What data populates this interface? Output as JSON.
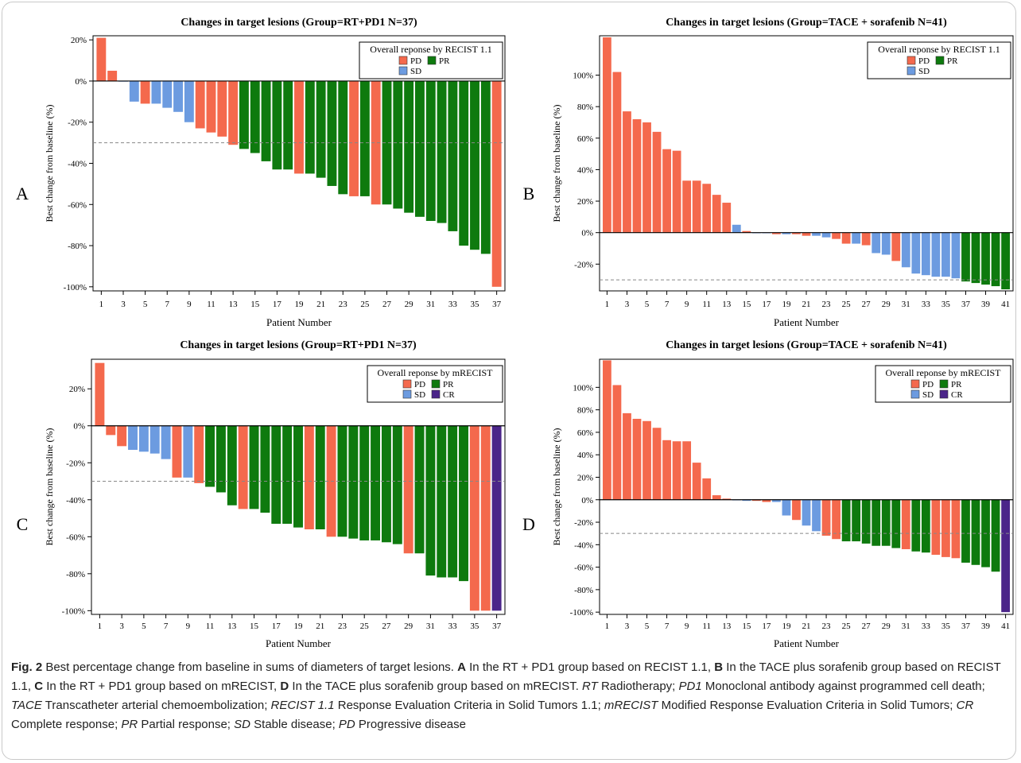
{
  "colors": {
    "PD": "#f4694d",
    "PR": "#0e7a0e",
    "SD": "#6c9be0",
    "CR": "#4b2589",
    "axis": "#000000",
    "refline": "#888888"
  },
  "chart_data": [
    {
      "type": "bar",
      "panel_letter": "A",
      "title": "Changes in target lesions (Group=RT+PD1 N=37)",
      "xlabel": "Patient Number",
      "ylabel": "Best change from baseline (%)",
      "ylim": [
        -102,
        22
      ],
      "yticks": [
        20,
        0,
        -20,
        -40,
        -60,
        -80,
        -100
      ],
      "ytick_labels": [
        "20%",
        "0%",
        "-20%",
        "-40%",
        "-60%",
        "-80%",
        "-100%"
      ],
      "xticks": [
        1,
        3,
        5,
        7,
        9,
        11,
        13,
        15,
        17,
        19,
        21,
        23,
        25,
        27,
        29,
        31,
        33,
        35,
        37
      ],
      "reference_line": -30,
      "legend": {
        "title": "Overall reponse by RECIST 1.1",
        "placement": "top-right",
        "rows": [
          [
            "PD",
            "PR"
          ],
          [
            "SD"
          ]
        ]
      },
      "values": [
        21,
        5,
        0,
        -10,
        -11,
        -11,
        -13,
        -15,
        -20,
        -23,
        -25,
        -27,
        -31,
        -33,
        -35,
        -39,
        -43,
        -43,
        -45,
        -45,
        -47,
        -51,
        -55,
        -56,
        -56,
        -60,
        -60,
        -62,
        -64,
        -66,
        -68,
        -69,
        -73,
        -80,
        -82,
        -84,
        -100
      ],
      "responses": [
        "PD",
        "PD",
        "SD",
        "SD",
        "PD",
        "SD",
        "SD",
        "SD",
        "SD",
        "PD",
        "PD",
        "PD",
        "PD",
        "PR",
        "PR",
        "PR",
        "PR",
        "PR",
        "PD",
        "PR",
        "PR",
        "PR",
        "PR",
        "PD",
        "PR",
        "PD",
        "PR",
        "PR",
        "PR",
        "PR",
        "PR",
        "PR",
        "PR",
        "PR",
        "PR",
        "PR",
        "PD"
      ]
    },
    {
      "type": "bar",
      "panel_letter": "B",
      "title": "Changes in target lesions (Group=TACE + sorafenib N=41)",
      "xlabel": "Patient Number",
      "ylabel": "Best change from baseline (%)",
      "ylim": [
        -37,
        125
      ],
      "yticks": [
        100,
        80,
        60,
        40,
        20,
        0,
        -20
      ],
      "ytick_labels": [
        "100%",
        "80%",
        "60%",
        "40%",
        "20%",
        "0%",
        "-20%"
      ],
      "xticks": [
        1,
        3,
        5,
        7,
        9,
        11,
        13,
        15,
        17,
        19,
        21,
        23,
        25,
        27,
        29,
        31,
        33,
        35,
        37,
        39,
        41
      ],
      "reference_line": -30,
      "legend": {
        "title": "Overall reponse by RECIST 1.1",
        "placement": "top-right",
        "rows": [
          [
            "PD",
            "PR"
          ],
          [
            "SD"
          ]
        ]
      },
      "values": [
        124,
        102,
        77,
        72,
        70,
        64,
        53,
        52,
        33,
        33,
        31,
        24,
        19,
        5,
        1,
        0,
        0,
        -1,
        -1,
        -1,
        -2,
        -2,
        -3,
        -4,
        -7,
        -7,
        -8,
        -13,
        -14,
        -18,
        -22,
        -26,
        -27,
        -28,
        -28,
        -29,
        -31,
        -32,
        -33,
        -34,
        -36
      ],
      "responses": [
        "PD",
        "PD",
        "PD",
        "PD",
        "PD",
        "PD",
        "PD",
        "PD",
        "PD",
        "PD",
        "PD",
        "PD",
        "PD",
        "SD",
        "PD",
        "SD",
        "SD",
        "PD",
        "SD",
        "PD",
        "PD",
        "SD",
        "SD",
        "PD",
        "PD",
        "SD",
        "PD",
        "SD",
        "SD",
        "PD",
        "SD",
        "SD",
        "SD",
        "SD",
        "SD",
        "SD",
        "PR",
        "PR",
        "PR",
        "PR",
        "PR"
      ]
    },
    {
      "type": "bar",
      "panel_letter": "C",
      "title": "Changes in target lesions (Group=RT+PD1 N=37)",
      "xlabel": "Patient Number",
      "ylabel": "Best change from baseline (%)",
      "ylim": [
        -102,
        36
      ],
      "yticks": [
        20,
        0,
        -20,
        -40,
        -60,
        -80,
        -100
      ],
      "ytick_labels": [
        "20%",
        "0%",
        "-20%",
        "-40%",
        "-60%",
        "-80%",
        "-100%"
      ],
      "xticks": [
        1,
        3,
        5,
        7,
        9,
        11,
        13,
        15,
        17,
        19,
        21,
        23,
        25,
        27,
        29,
        31,
        33,
        35,
        37
      ],
      "reference_line": -30,
      "legend": {
        "title": "Overall reponse by mRECIST",
        "placement": "top-right",
        "rows": [
          [
            "PD",
            "PR"
          ],
          [
            "SD",
            "CR"
          ]
        ]
      },
      "values": [
        34,
        -5,
        -11,
        -13,
        -14,
        -15,
        -18,
        -28,
        -28,
        -31,
        -33,
        -36,
        -43,
        -45,
        -45,
        -47,
        -53,
        -53,
        -55,
        -56,
        -56,
        -60,
        -60,
        -61,
        -62,
        -62,
        -63,
        -64,
        -69,
        -69,
        -81,
        -82,
        -82,
        -84,
        -100,
        -100,
        -100
      ],
      "responses": [
        "PD",
        "PD",
        "PD",
        "SD",
        "SD",
        "SD",
        "SD",
        "PD",
        "SD",
        "PD",
        "PR",
        "PR",
        "PR",
        "PD",
        "PR",
        "PR",
        "PR",
        "PR",
        "PR",
        "PD",
        "PR",
        "PD",
        "PR",
        "PR",
        "PR",
        "PR",
        "PR",
        "PR",
        "PD",
        "PR",
        "PR",
        "PR",
        "PR",
        "PR",
        "PD",
        "PD",
        "CR"
      ]
    },
    {
      "type": "bar",
      "panel_letter": "D",
      "title": "Changes in target lesions (Group=TACE + sorafenib N=41)",
      "xlabel": "Patient Number",
      "ylabel": "Best change from baseline (%)",
      "ylim": [
        -102,
        125
      ],
      "yticks": [
        100,
        80,
        60,
        40,
        20,
        0,
        -20,
        -40,
        -60,
        -80,
        -100
      ],
      "ytick_labels": [
        "100%",
        "80%",
        "60%",
        "40%",
        "20%",
        "0%",
        "-20%",
        "-40%",
        "-60%",
        "-80%",
        "-100%"
      ],
      "xticks": [
        1,
        3,
        5,
        7,
        9,
        11,
        13,
        15,
        17,
        19,
        21,
        23,
        25,
        27,
        29,
        31,
        33,
        35,
        37,
        39,
        41
      ],
      "reference_line": -30,
      "legend": {
        "title": "Overall reponse by mRECIST",
        "placement": "top-right",
        "rows": [
          [
            "PD",
            "PR"
          ],
          [
            "SD",
            "CR"
          ]
        ]
      },
      "values": [
        124,
        102,
        77,
        72,
        70,
        64,
        53,
        52,
        52,
        33,
        19,
        4,
        1,
        0,
        -1,
        -1,
        -2,
        -2,
        -14,
        -18,
        -23,
        -28,
        -32,
        -35,
        -37,
        -37,
        -39,
        -41,
        -41,
        -43,
        -44,
        -46,
        -47,
        -49,
        -51,
        -52,
        -56,
        -58,
        -60,
        -64,
        -100
      ],
      "responses": [
        "PD",
        "PD",
        "PD",
        "PD",
        "PD",
        "PD",
        "PD",
        "PD",
        "PD",
        "PD",
        "PD",
        "PD",
        "PD",
        "SD",
        "SD",
        "PD",
        "PD",
        "SD",
        "SD",
        "PD",
        "SD",
        "SD",
        "PD",
        "PD",
        "PR",
        "PR",
        "PR",
        "PR",
        "PR",
        "PR",
        "PD",
        "PR",
        "PR",
        "PD",
        "PD",
        "PD",
        "PR",
        "PR",
        "PR",
        "PR",
        "CR"
      ]
    }
  ],
  "caption": {
    "label": "Fig. 2",
    "text": "Best percentage change from baseline in sums of diameters of target lesions. A In the RT + PD1 group based on RECIST 1.1, B In the TACE plus sorafenib group based on RECIST 1.1, C In the RT + PD1 group based on mRECIST, D In the TACE plus sorafenib group based on mRECIST. RT Radiotherapy; PD1 Monoclonal antibody against programmed cell death; TACE Transcatheter arterial chemoembolization; RECIST 1.1 Response Evaluation Criteria in Solid Tumors 1.1; mRECIST Modified Response Evaluation Criteria in Solid Tumors; CR Complete response; PR Partial response; SD Stable disease; PD Progressive disease",
    "segments": [
      {
        "t": "Fig. 2",
        "s": "b"
      },
      {
        "t": "  Best percentage change from baseline in sums of diameters of target lesions. ",
        "s": ""
      },
      {
        "t": "A",
        "s": "b"
      },
      {
        "t": " In the RT + PD1 group based on RECIST 1.1, ",
        "s": ""
      },
      {
        "t": "B",
        "s": "b"
      },
      {
        "t": " In the TACE plus sorafenib group based on RECIST 1.1, ",
        "s": ""
      },
      {
        "t": "C",
        "s": "b"
      },
      {
        "t": " In the RT + PD1 group based on mRECIST, ",
        "s": ""
      },
      {
        "t": "D",
        "s": "b"
      },
      {
        "t": " In the TACE plus sorafenib group based on mRECIST. ",
        "s": ""
      },
      {
        "t": "RT",
        "s": "i"
      },
      {
        "t": " Radiotherapy; ",
        "s": ""
      },
      {
        "t": "PD1",
        "s": "i"
      },
      {
        "t": " Monoclonal antibody against programmed cell death; ",
        "s": ""
      },
      {
        "t": "TACE",
        "s": "i"
      },
      {
        "t": " Transcatheter arterial chemoembolization; ",
        "s": ""
      },
      {
        "t": "RECIST 1.1",
        "s": "i"
      },
      {
        "t": " Response Evaluation Criteria in Solid Tumors 1.1; ",
        "s": ""
      },
      {
        "t": "mRECIST",
        "s": "i"
      },
      {
        "t": " Modified Response Evaluation Criteria in Solid Tumors; ",
        "s": ""
      },
      {
        "t": "CR",
        "s": "i"
      },
      {
        "t": " Complete response; ",
        "s": ""
      },
      {
        "t": "PR",
        "s": "i"
      },
      {
        "t": " Partial response; ",
        "s": ""
      },
      {
        "t": "SD",
        "s": "i"
      },
      {
        "t": " Stable disease; ",
        "s": ""
      },
      {
        "t": "PD",
        "s": "i"
      },
      {
        "t": " Progressive disease",
        "s": ""
      }
    ]
  }
}
